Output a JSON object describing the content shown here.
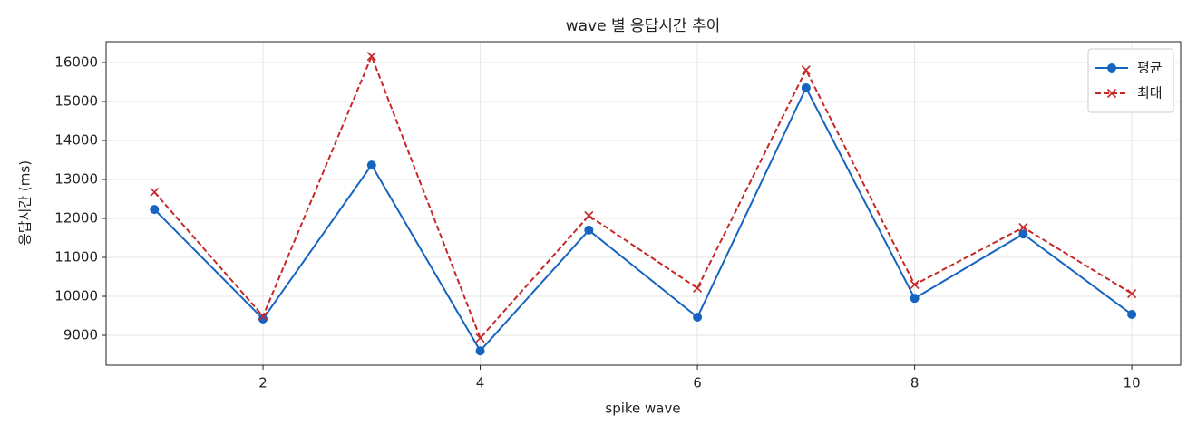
{
  "chart_data": {
    "type": "line",
    "title": "wave 별 응답시간 추이",
    "xlabel": "spike wave",
    "ylabel": "응답시간 (ms)",
    "x": [
      1,
      2,
      3,
      4,
      5,
      6,
      7,
      8,
      9,
      10
    ],
    "series": [
      {
        "name": "평균",
        "color": "#1565c0",
        "marker": "o",
        "dash": "solid",
        "values": [
          12230,
          9420,
          13370,
          8600,
          11700,
          9465,
          15350,
          9950,
          11600,
          9535
        ]
      },
      {
        "name": "최대",
        "color": "#c62828",
        "marker": "x",
        "dash": "dashed",
        "values": [
          12675,
          9490,
          16160,
          8930,
          12070,
          10210,
          15810,
          10300,
          11770,
          10070
        ]
      }
    ],
    "xlim": [
      0.555,
      10.45
    ],
    "xticks": [
      2,
      4,
      6,
      8,
      10
    ],
    "ylim": [
      8233,
      16535
    ],
    "yticks": [
      9000,
      10000,
      11000,
      12000,
      13000,
      14000,
      15000,
      16000
    ],
    "grid": true,
    "legend": "upper right"
  }
}
